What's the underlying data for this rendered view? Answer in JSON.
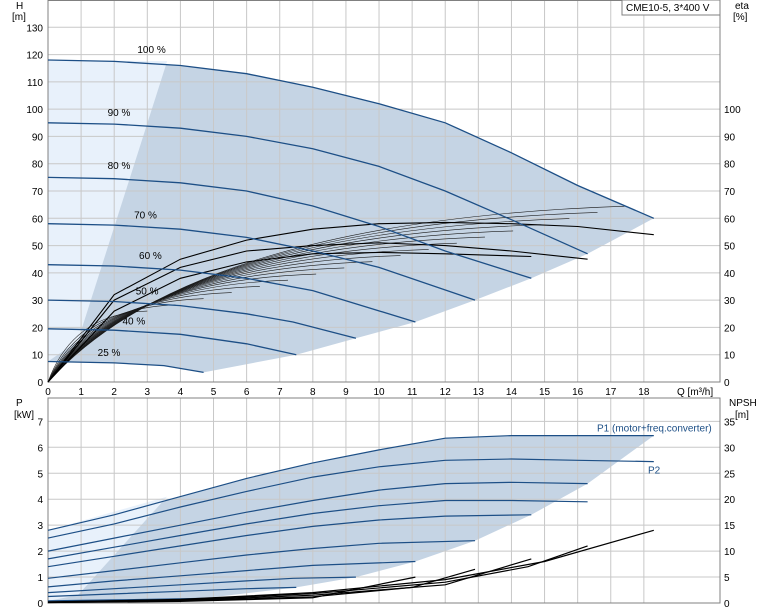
{
  "title": "CME10-5, 3*400 V",
  "colors": {
    "region": "#c5d4e4",
    "region_light": "#e8f1fb",
    "curve": "#1d4f86",
    "grid": "#c8c8c8"
  },
  "chart_data": [
    {
      "type": "line",
      "name": "head",
      "y_label_top": "H",
      "y_unit": "[m]",
      "y2_label_top": "eta",
      "y2_unit": "[%]",
      "x_label": "Q [m³/h]",
      "xlim": [
        0,
        20.3
      ],
      "ylim": [
        0,
        140
      ],
      "y2lim": [
        0,
        140
      ],
      "x_ticks": [
        0,
        1,
        2,
        3,
        4,
        5,
        6,
        7,
        8,
        9,
        10,
        11,
        12,
        13,
        14,
        15,
        16,
        17,
        18
      ],
      "y_ticks": [
        0,
        10,
        20,
        30,
        40,
        50,
        60,
        70,
        80,
        90,
        100,
        110,
        120,
        130
      ],
      "y2_ticks": [
        0,
        10,
        20,
        30,
        40,
        50,
        60,
        70,
        80,
        90,
        100
      ],
      "grid": true,
      "speed_labels": [
        "100 %",
        "90 %",
        "80 %",
        "70 %",
        "60 %",
        "50 %",
        "40 %",
        "25 %"
      ],
      "head_series": [
        {
          "label": "100 %",
          "x": [
            0,
            2,
            4,
            6,
            8,
            10,
            12,
            14,
            16,
            18.3
          ],
          "y": [
            118,
            117.5,
            116,
            113,
            108,
            102,
            95,
            84,
            72,
            60
          ]
        },
        {
          "label": "90 %",
          "x": [
            0,
            2,
            4,
            6,
            8,
            10,
            12,
            14,
            16.3
          ],
          "y": [
            95,
            94.5,
            93,
            90,
            85.5,
            79,
            70,
            59.5,
            47
          ]
        },
        {
          "label": "80 %",
          "x": [
            0,
            2,
            4,
            6,
            8,
            10,
            12,
            14.6
          ],
          "y": [
            75,
            74.5,
            73,
            70,
            64.5,
            57,
            48,
            38
          ]
        },
        {
          "label": "70 %",
          "x": [
            0,
            2,
            4,
            6,
            8,
            10,
            12.9
          ],
          "y": [
            58,
            57.5,
            56,
            53,
            48,
            42,
            30
          ]
        },
        {
          "label": "60 %",
          "x": [
            0,
            2,
            4,
            6,
            8,
            11.1
          ],
          "y": [
            43,
            42.5,
            41,
            38,
            33.5,
            22
          ]
        },
        {
          "label": "50 %",
          "x": [
            0,
            2,
            4,
            6,
            7.4,
            9.3
          ],
          "y": [
            30,
            29.5,
            28,
            25,
            22,
            16
          ]
        },
        {
          "label": "40 %",
          "x": [
            0,
            2,
            4,
            6,
            7.5
          ],
          "y": [
            19.5,
            19,
            17.5,
            14,
            10
          ]
        },
        {
          "label": "25 %",
          "x": [
            0,
            2,
            3.5,
            4.7
          ],
          "y": [
            7.5,
            7,
            6,
            3.5
          ]
        }
      ],
      "eta_series": [
        {
          "x": [
            0,
            2,
            4,
            6,
            8,
            10,
            12,
            14,
            16,
            18.3
          ],
          "y": [
            0,
            32,
            45,
            52,
            56,
            58,
            58.5,
            58,
            57,
            54
          ]
        },
        {
          "x": [
            0,
            2,
            4,
            6,
            8,
            10,
            12,
            14,
            16.3
          ],
          "y": [
            0,
            30,
            42,
            48,
            50,
            51,
            50,
            48,
            45
          ]
        },
        {
          "x": [
            0,
            2,
            4,
            6,
            8,
            10,
            12,
            14.6
          ],
          "y": [
            0,
            26,
            38,
            44,
            47,
            47.5,
            47,
            46
          ]
        }
      ]
    },
    {
      "type": "line",
      "name": "power_npsh",
      "y_label_top": "P",
      "y_unit": "[kW]",
      "y2_label_top": "NPSH",
      "y2_unit": "[m]",
      "xlim": [
        0,
        20.3
      ],
      "ylim": [
        0,
        7.9
      ],
      "y2lim": [
        0,
        39.5
      ],
      "y_ticks": [
        0,
        1,
        2,
        3,
        4,
        5,
        6,
        7
      ],
      "y2_ticks": [
        0,
        5,
        10,
        15,
        20,
        25,
        30,
        35
      ],
      "grid": true,
      "series_labels": [
        "P1 (motor+freq.converter)",
        "P2"
      ],
      "p1_series": [
        {
          "x": [
            0,
            2,
            4,
            6,
            8,
            10,
            12,
            14,
            16,
            18.3
          ],
          "y": [
            2.8,
            3.4,
            4.1,
            4.8,
            5.4,
            5.9,
            6.35,
            6.45,
            6.45,
            6.45
          ]
        },
        {
          "x": [
            0,
            2,
            4,
            6,
            8,
            10,
            12,
            14,
            16.3
          ],
          "y": [
            2.0,
            2.5,
            3.0,
            3.5,
            3.95,
            4.35,
            4.6,
            4.65,
            4.6
          ]
        },
        {
          "x": [
            0,
            2,
            4,
            6,
            8,
            10,
            12,
            14.6
          ],
          "y": [
            1.4,
            1.8,
            2.2,
            2.6,
            2.95,
            3.2,
            3.35,
            3.4
          ]
        },
        {
          "x": [
            0,
            2,
            4,
            6,
            8,
            10,
            12.9
          ],
          "y": [
            0.95,
            1.25,
            1.55,
            1.85,
            2.1,
            2.3,
            2.4
          ]
        },
        {
          "x": [
            0,
            2,
            4,
            6,
            8,
            11.1
          ],
          "y": [
            0.62,
            0.85,
            1.05,
            1.25,
            1.45,
            1.6
          ]
        },
        {
          "x": [
            0,
            2,
            4,
            6,
            7.4,
            9.3
          ],
          "y": [
            0.4,
            0.55,
            0.7,
            0.85,
            0.95,
            1.0
          ]
        },
        {
          "x": [
            0,
            2,
            4,
            6,
            7.5
          ],
          "y": [
            0.25,
            0.35,
            0.45,
            0.55,
            0.6
          ]
        },
        {
          "x": [
            0,
            2,
            3.5,
            4.7
          ],
          "y": [
            0.08,
            0.12,
            0.15,
            0.18
          ]
        }
      ],
      "p2_series": [
        {
          "x": [
            0,
            2,
            4,
            6,
            8,
            10,
            12,
            14,
            16,
            18.3
          ],
          "y": [
            2.5,
            3.05,
            3.7,
            4.3,
            4.85,
            5.25,
            5.5,
            5.55,
            5.5,
            5.45
          ]
        },
        {
          "x": [
            0,
            2,
            4,
            6,
            8,
            10,
            12,
            14,
            16.3
          ],
          "y": [
            1.7,
            2.15,
            2.6,
            3.05,
            3.45,
            3.75,
            3.95,
            3.95,
            3.9
          ]
        }
      ],
      "npsh_series": [
        {
          "x": [
            0,
            4,
            8,
            12,
            15,
            18.3
          ],
          "y": [
            0.2,
            0.7,
            2.0,
            4.5,
            8.0,
            14.0
          ]
        },
        {
          "x": [
            0,
            4,
            8,
            12,
            14.5,
            16.3
          ],
          "y": [
            0.2,
            0.6,
            1.8,
            4.0,
            7.0,
            11.0
          ]
        },
        {
          "x": [
            0,
            4,
            8,
            12,
            14.6
          ],
          "y": [
            0.15,
            0.5,
            1.5,
            3.5,
            8.5
          ]
        },
        {
          "x": [
            0,
            4,
            8,
            11,
            12.9
          ],
          "y": [
            0.1,
            0.4,
            1.2,
            3.0,
            6.5
          ]
        },
        {
          "x": [
            0,
            4,
            8,
            11.1
          ],
          "y": [
            0.1,
            0.3,
            1.0,
            5.0
          ]
        }
      ]
    }
  ]
}
